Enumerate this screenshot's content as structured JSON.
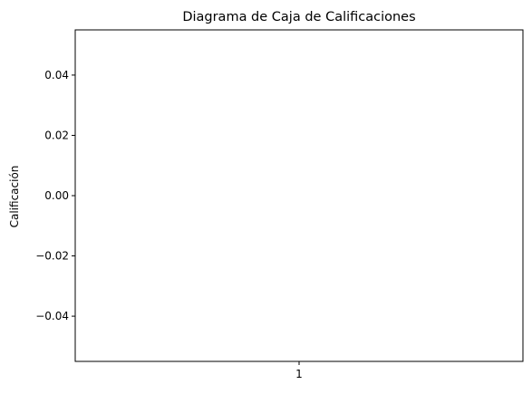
{
  "chart_data": {
    "type": "box",
    "title": "Diagrama de Caja de Calificaciones",
    "xlabel": "",
    "ylabel": "Calificación",
    "categories": [
      "1"
    ],
    "series": [
      {
        "values": []
      }
    ],
    "ylim": [
      -0.055,
      0.055
    ],
    "yticks": [
      -0.04,
      -0.02,
      0.0,
      0.02,
      0.04
    ],
    "ytick_labels": [
      "−0.04",
      "−0.02",
      "0.00",
      "0.02",
      "0.04"
    ],
    "xtick_labels": [
      "1"
    ],
    "grid": false,
    "legend": "none"
  }
}
